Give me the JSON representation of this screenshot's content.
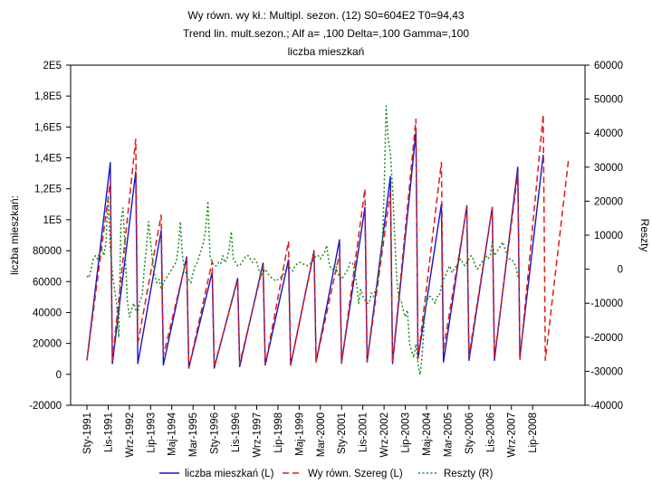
{
  "chart_data": {
    "type": "line",
    "title_lines": [
      "Wy równ. wy kł.: Multipl. sezon. (12) S0=604E2 T0=94,43",
      "Trend lin. mult.sezon.;   Alf a=  ,100 Delta=,100 Gamma=,100",
      "liczba mieszkań"
    ],
    "ylabel_left": "liczba mieszkań:",
    "ylabel_right": "Reszty",
    "left_axis": {
      "range": [
        -20000,
        200000
      ],
      "ticks": [
        -20000,
        0,
        20000,
        40000,
        60000,
        80000,
        100000,
        120000,
        140000,
        160000,
        180000,
        200000
      ],
      "tick_labels": [
        "-20000",
        "0",
        "20000",
        "40000",
        "60000",
        "80000",
        "1E5",
        "1,2E5",
        "1,4E5",
        "1,6E5",
        "1,8E5",
        "2E5"
      ]
    },
    "right_axis": {
      "range": [
        -40000,
        60000
      ],
      "ticks": [
        -40000,
        -30000,
        -20000,
        -10000,
        0,
        10000,
        20000,
        30000,
        40000,
        50000,
        60000
      ],
      "tick_labels": [
        "-40000",
        "-30000",
        "-20000",
        "-10000",
        "0",
        "10000",
        "20000",
        "30000",
        "40000",
        "50000",
        "60000"
      ]
    },
    "x_axis": {
      "range": [
        1,
        228
      ],
      "ticks": [
        1,
        11,
        21,
        31,
        41,
        51,
        61,
        71,
        81,
        91,
        101,
        111,
        121,
        131,
        141,
        151,
        161,
        171,
        181,
        191,
        201,
        211
      ],
      "tick_labels": [
        "Sty-1991",
        "Lis-1991",
        "Wrz-1992",
        "Lip-1993",
        "Maj-1994",
        "Mar-1995",
        "Sty-1996",
        "Lis-1996",
        "Wrz-1997",
        "Lip-1998",
        "Maj-1999",
        "Mar-2000",
        "Sty-2001",
        "Lis-2001",
        "Wrz-2002",
        "Lip-2003",
        "Maj-2004",
        "Mar-2005",
        "Sty-2006",
        "Lis-2006",
        "Wrz-2007",
        "Lip-2008"
      ]
    },
    "x_interval": 12,
    "series": [
      {
        "name": "liczba mieszkań (L)",
        "axis": "left",
        "color": "#1414c8",
        "style": "solid",
        "january_start": [
          9000,
          7000,
          7000,
          6000,
          4000,
          4000,
          5000,
          6000,
          6000,
          8000,
          8000,
          8000,
          7000,
          10000,
          8000,
          9000,
          9000,
          11000
        ],
        "december_peak": [
          137000,
          131000,
          93000,
          76000,
          66000,
          62000,
          72000,
          74000,
          80000,
          87000,
          108000,
          128000,
          157000,
          110000,
          109000,
          108000,
          134000,
          142000
        ]
      },
      {
        "name": "Wy równ. Szereg (L)",
        "axis": "left",
        "color": "#e01b1b",
        "style": "dashed",
        "january_start": [
          9000,
          9000,
          20000,
          12000,
          4000,
          5000,
          7000,
          6000,
          6000,
          8000,
          7000,
          8000,
          8000,
          10000,
          16000,
          12000,
          11000,
          9000,
          9000
        ],
        "december_peak": [
          125000,
          152000,
          103000,
          75000,
          73000,
          61000,
          70000,
          86000,
          79000,
          78000,
          120000,
          118000,
          165000,
          137000,
          108000,
          108000,
          130000,
          168000,
          140000
        ]
      },
      {
        "name": "Reszty  (R)",
        "axis": "right",
        "color": "#1e8c1e",
        "style": "dotted",
        "values": [
          -2000,
          -2500,
          0,
          3000,
          4000,
          3000,
          5000,
          6000,
          4000,
          8000,
          21000,
          6000,
          -1000,
          -6000,
          -10000,
          -20000,
          14000,
          18000,
          6000,
          -9000,
          -14000,
          -12000,
          -10000,
          -12000,
          -13000,
          -9000,
          -8000,
          0,
          6000,
          14000,
          8000,
          2000,
          -2000,
          -4000,
          -3000,
          -6000,
          -4000,
          -3000,
          -2000,
          -1000,
          0,
          1000,
          2000,
          6000,
          14000,
          4000,
          0,
          -2000,
          -3000,
          -4000,
          -1000,
          1000,
          2000,
          4000,
          6000,
          8000,
          12000,
          20000,
          4000,
          2000,
          1000,
          1000,
          2000,
          1500,
          4000,
          2000,
          3000,
          6000,
          11000,
          3000,
          2000,
          1000,
          1000,
          2000,
          3000,
          4000,
          4000,
          3000,
          2000,
          3000,
          2000,
          0,
          -2000,
          -1000,
          0,
          -1000,
          -2000,
          -2500,
          -3000,
          -3500,
          -3000,
          -2500,
          -2000,
          -1000,
          0,
          1000,
          0,
          -500,
          1000,
          1500,
          2000,
          2000,
          1500,
          1500,
          1000,
          1500,
          2000,
          3000,
          4000,
          4000,
          3000,
          4000,
          5000,
          7000,
          2000,
          0,
          0,
          2000,
          -1000,
          -2000,
          -3000,
          -2000,
          -1000,
          0,
          2000,
          2000,
          0,
          -4000,
          -10000,
          -6000,
          -8000,
          -9000,
          -10000,
          -10000,
          -7000,
          -8000,
          -6000,
          -5000,
          2000,
          6000,
          22000,
          48000,
          38000,
          34000,
          24000,
          10000,
          -3000,
          -9000,
          -9000,
          -12000,
          -14000,
          -12000,
          -22000,
          -24000,
          -26000,
          -22000,
          -28000,
          -31000,
          -25000,
          -15000,
          -10000,
          -8000,
          -8000,
          -9000,
          -10000,
          -8000,
          -8000,
          -5000,
          -3000,
          -2000,
          0,
          1000,
          -1000,
          0,
          1000,
          2000,
          3000,
          2000,
          1000,
          2000,
          3000,
          4000,
          3000,
          1000,
          0,
          1000,
          2000,
          3000,
          4000,
          3000,
          4000,
          8000,
          4000,
          5000,
          6000,
          7000,
          8000,
          6000,
          4000,
          3000,
          3000,
          2000,
          1000,
          -2000,
          -4000
        ]
      }
    ],
    "legend": {
      "placement": "bottom",
      "entries": [
        "liczba mieszkań (L)",
        "Wy równ. Szereg (L)",
        "Reszty  (R)"
      ]
    },
    "grid": false
  }
}
